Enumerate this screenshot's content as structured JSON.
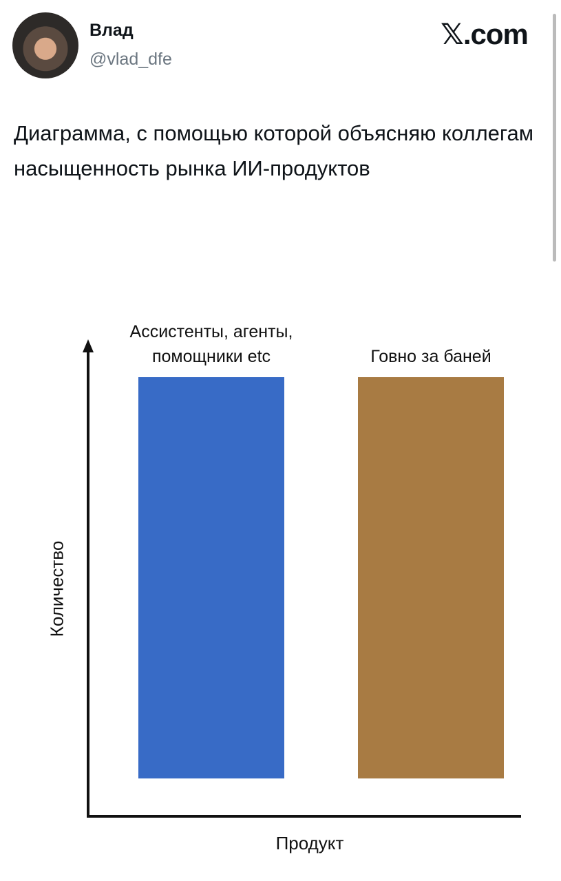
{
  "tweet": {
    "author": "Влад",
    "handle": "@vlad_dfe",
    "brand": "𝕏.com",
    "text": "Диаграмма, с помощью которой объясняю коллегам насыщенность рынка ИИ-продуктов"
  },
  "chart_data": {
    "type": "bar",
    "categories": [
      "Ассистенты, агенты, помощники etc",
      "Говно за баней"
    ],
    "series": [
      {
        "name": null,
        "colors": [
          "#386bc6",
          "#a87b43"
        ],
        "values": [
          100,
          100
        ]
      }
    ],
    "ylim": [
      0,
      100
    ],
    "xlabel": "Продукт",
    "ylabel": "Количество"
  }
}
